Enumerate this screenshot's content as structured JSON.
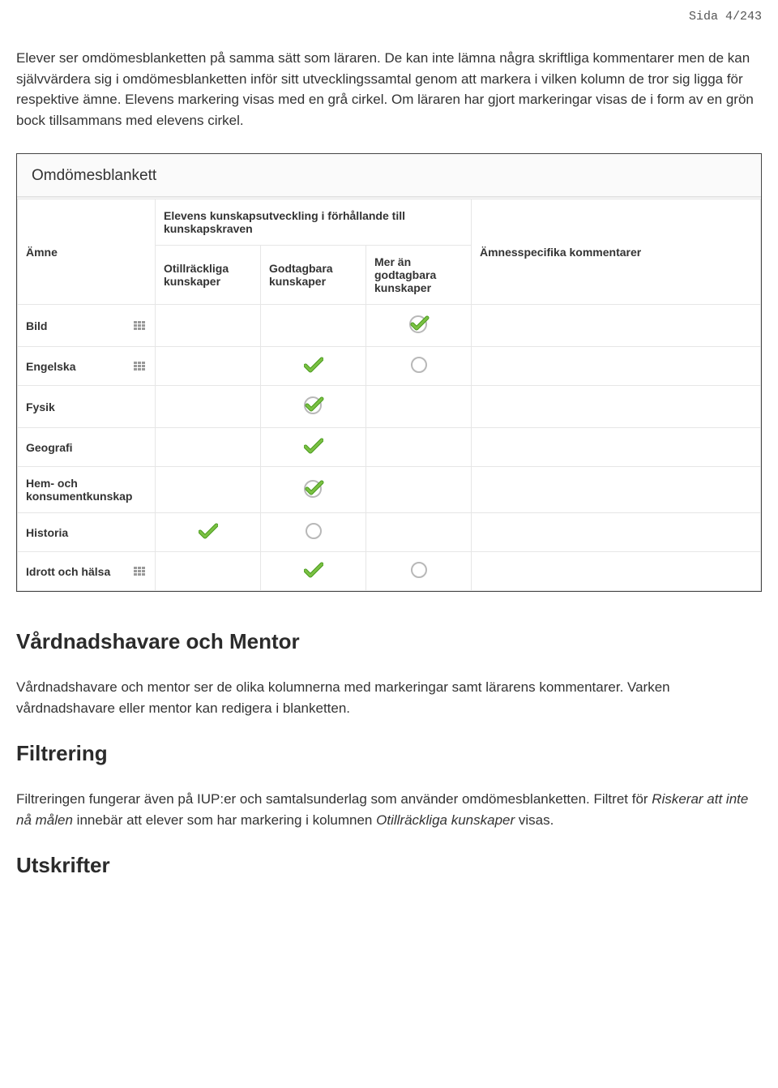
{
  "page_number": "Sida 4/243",
  "intro_paragraph": "Elever ser omdömesblanketten på samma sätt som läraren. De kan inte lämna några skriftliga kommentarer men de kan självvärdera sig i omdömesblanketten inför sitt utvecklingssamtal genom att markera i vilken kolumn de tror sig ligga för respektive ämne. Elevens markering visas med en grå cirkel. Om läraren har gjort markeringar visas de i form av en grön bock tillsammans med elevens cirkel.",
  "panel_title": "Omdömesblankett",
  "columns": {
    "subject": "Ämne",
    "group_header": "Elevens kunskapsutveckling i förhållande till kunskapskraven",
    "c1": "Otillräckliga kunskaper",
    "c2": "Godtagbara kunskaper",
    "c3": "Mer än godtagbara kunskaper",
    "comments": "Ämnesspecifika kommentarer"
  },
  "rows": [
    {
      "subject": "Bild",
      "has_matrix": true,
      "marks": [
        "",
        "",
        "check_circle"
      ]
    },
    {
      "subject": "Engelska",
      "has_matrix": true,
      "marks": [
        "",
        "check",
        "circle"
      ]
    },
    {
      "subject": "Fysik",
      "has_matrix": false,
      "marks": [
        "",
        "check_circle",
        ""
      ]
    },
    {
      "subject": "Geografi",
      "has_matrix": false,
      "marks": [
        "",
        "check",
        ""
      ]
    },
    {
      "subject": "Hem- och konsumentkunskap",
      "has_matrix": false,
      "marks": [
        "",
        "check_circle",
        ""
      ]
    },
    {
      "subject": "Historia",
      "has_matrix": false,
      "marks": [
        "check",
        "circle",
        ""
      ]
    },
    {
      "subject": "Idrott och hälsa",
      "has_matrix": true,
      "marks": [
        "",
        "check",
        "circle"
      ]
    }
  ],
  "colors": {
    "check_green": "#7bc143",
    "check_dark": "#4a9b1f",
    "circle_border": "#b8b8b8",
    "panel_border": "#444444",
    "cell_border": "#e6e6e6"
  },
  "section2_heading": "Vårdnadshavare och Mentor",
  "section2_para": "Vårdnadshavare och mentor ser de olika kolumnerna med markeringar samt lärarens kommentarer. Varken vårdnadshavare eller mentor kan redigera i blanketten.",
  "section3_heading": "Filtrering",
  "section3_pre": "Filtreringen fungerar även på IUP:er och samtalsunderlag som använder omdömesblanketten. Filtret för ",
  "section3_italic1": "Riskerar att inte nå målen",
  "section3_mid": " innebär att elever som har markering i kolumnen ",
  "section3_italic2": "Otillräckliga kunskaper",
  "section3_post": " visas.",
  "section4_heading": "Utskrifter"
}
